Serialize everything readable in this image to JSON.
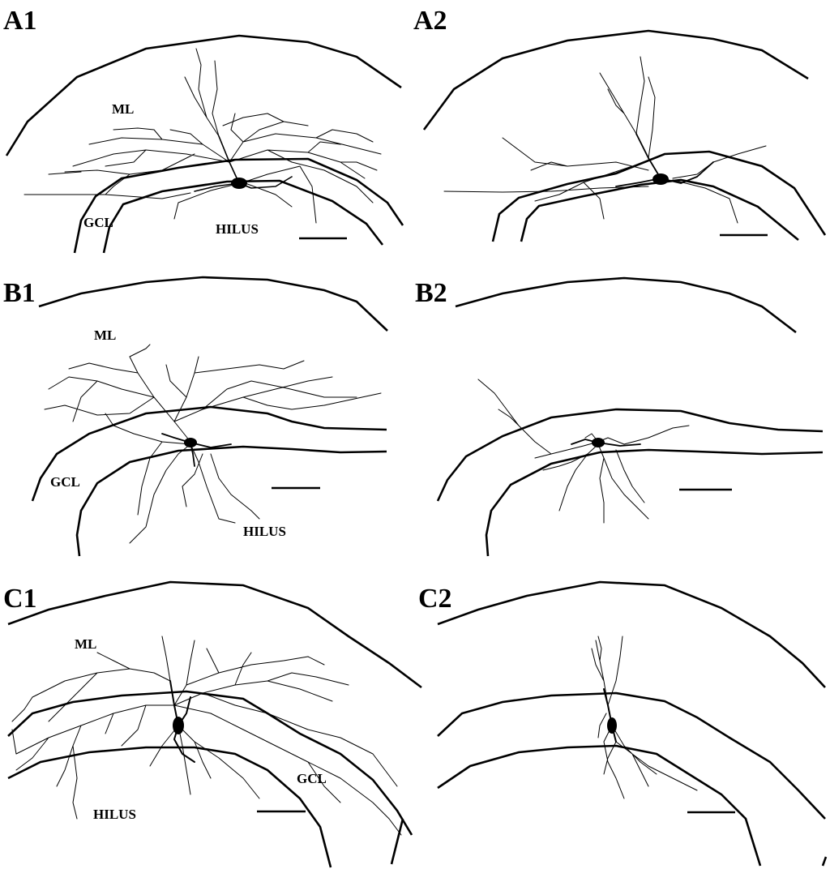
{
  "panels": [
    {
      "id": "A1",
      "label": "A1",
      "regions": {
        "ml": "ML",
        "gcl": "GCL",
        "hilus": "HILUS"
      }
    },
    {
      "id": "A2",
      "label": "A2",
      "regions": {}
    },
    {
      "id": "B1",
      "label": "B1",
      "regions": {
        "ml": "ML",
        "gcl": "GCL",
        "hilus": "HILUS"
      }
    },
    {
      "id": "B2",
      "label": "B2",
      "regions": {}
    },
    {
      "id": "C1",
      "label": "C1",
      "regions": {
        "ml": "ML",
        "gcl": "GCL",
        "hilus": "HILUS"
      }
    },
    {
      "id": "C2",
      "label": "C2",
      "regions": {}
    }
  ],
  "colors": {
    "ink": "#000000",
    "background": "#ffffff"
  }
}
